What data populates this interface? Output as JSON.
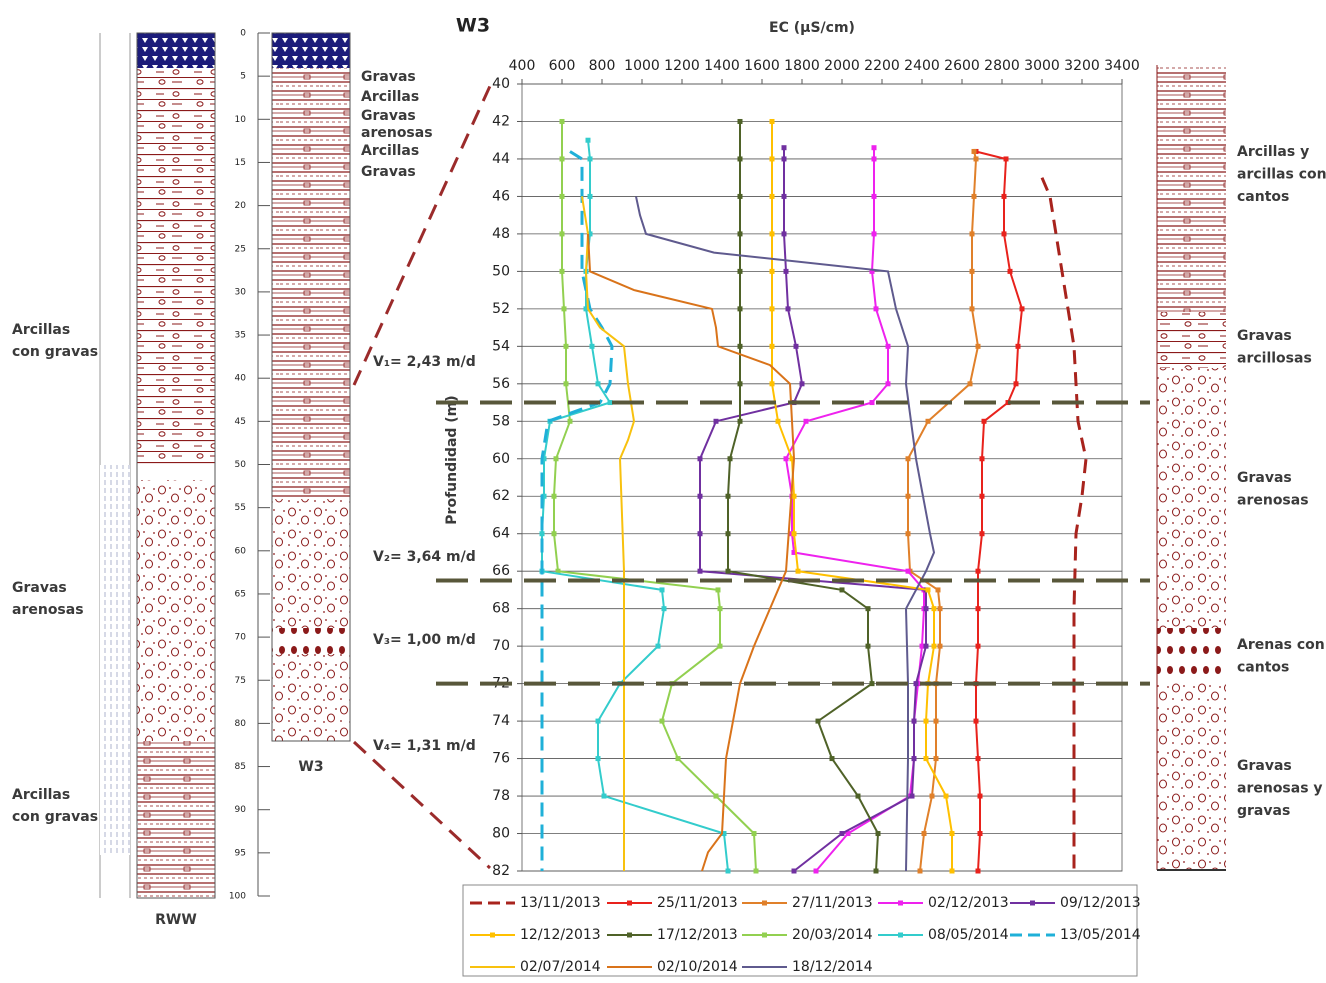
{
  "chart_data": {
    "type": "line",
    "title": "W3",
    "x_label": "EC (µS/cm)",
    "y_label": "Profundidad (m)",
    "xlim": [
      400,
      3400
    ],
    "xticks": [
      400,
      600,
      800,
      1000,
      1200,
      1400,
      1600,
      1800,
      2000,
      2200,
      2400,
      2600,
      2800,
      3000,
      3200,
      3400
    ],
    "ylim": [
      40,
      82
    ],
    "y_inverted": true,
    "yticks": [
      40,
      42,
      44,
      46,
      48,
      50,
      52,
      54,
      56,
      58,
      60,
      62,
      64,
      66,
      68,
      70,
      72,
      74,
      76,
      78,
      80,
      82
    ],
    "grid": true,
    "boundaries": [
      57,
      66.5,
      72
    ],
    "velocity_labels": [
      "V₁= 2,43 m/d",
      "V₂= 3,64 m/d",
      "V₃= 1,00 m/d",
      "V₄= 1,31 m/d"
    ],
    "series": [
      {
        "name": "13/11/2013",
        "color": "#a8231d",
        "dash": true,
        "marker": false,
        "y": [
          45,
          46,
          50,
          54,
          58,
          60,
          62,
          64,
          68,
          72,
          76,
          80,
          82
        ],
        "x": [
          3000,
          3040,
          3100,
          3160,
          3180,
          3220,
          3200,
          3170,
          3160,
          3160,
          3160,
          3160,
          3160
        ]
      },
      {
        "name": "25/11/2013",
        "color": "#e8221c",
        "dash": false,
        "marker": true,
        "y": [
          43.6,
          44,
          46,
          48,
          50,
          52,
          54,
          56,
          57,
          58,
          60,
          62,
          64,
          66,
          68,
          70,
          72,
          74,
          76,
          78,
          80,
          82
        ],
        "x": [
          2670,
          2820,
          2810,
          2810,
          2840,
          2900,
          2880,
          2870,
          2830,
          2710,
          2700,
          2700,
          2700,
          2680,
          2680,
          2680,
          2670,
          2670,
          2680,
          2690,
          2690,
          2680
        ]
      },
      {
        "name": "27/11/2013",
        "color": "#e0802a",
        "dash": false,
        "marker": true,
        "y": [
          43.6,
          44,
          46,
          48,
          50,
          52,
          54,
          56,
          58,
          60,
          62,
          64,
          66,
          67,
          68,
          70,
          72,
          74,
          76,
          78,
          80,
          82
        ],
        "x": [
          2660,
          2670,
          2660,
          2650,
          2650,
          2650,
          2680,
          2640,
          2430,
          2330,
          2330,
          2330,
          2340,
          2480,
          2490,
          2490,
          2470,
          2470,
          2470,
          2450,
          2410,
          2390
        ]
      },
      {
        "name": "02/12/2013",
        "color": "#ee22ee",
        "dash": false,
        "marker": true,
        "y": [
          43.4,
          44,
          46,
          48,
          50,
          52,
          54,
          56,
          57,
          58,
          60,
          62,
          64,
          65,
          66,
          67,
          68,
          70,
          72,
          74,
          76,
          78,
          80,
          82
        ],
        "x": [
          2160,
          2160,
          2160,
          2160,
          2150,
          2170,
          2230,
          2230,
          2150,
          1820,
          1720,
          1750,
          1750,
          1760,
          2330,
          2410,
          2410,
          2400,
          2380,
          2360,
          2360,
          2340,
          2030,
          1870
        ]
      },
      {
        "name": "09/12/2013",
        "color": "#7030a0",
        "dash": false,
        "marker": true,
        "y": [
          43.4,
          44,
          46,
          48,
          50,
          52,
          54,
          56,
          57,
          58,
          60,
          62,
          64,
          66,
          67,
          68,
          70,
          72,
          74,
          76,
          78,
          80,
          82
        ],
        "x": [
          1710,
          1710,
          1710,
          1710,
          1720,
          1730,
          1770,
          1800,
          1760,
          1370,
          1290,
          1290,
          1290,
          1290,
          2420,
          2420,
          2420,
          2370,
          2360,
          2360,
          2350,
          2000,
          1760
        ]
      },
      {
        "name": "12/12/2013",
        "color": "#ffc000",
        "dash": false,
        "marker": true,
        "y": [
          42,
          44,
          46,
          48,
          50,
          52,
          54,
          56,
          58,
          60,
          62,
          64,
          66,
          67,
          68,
          70,
          72,
          74,
          76,
          78,
          80,
          82
        ],
        "x": [
          1650,
          1650,
          1650,
          1650,
          1650,
          1650,
          1650,
          1650,
          1680,
          1750,
          1760,
          1760,
          1780,
          2430,
          2460,
          2460,
          2430,
          2420,
          2420,
          2520,
          2550,
          2550
        ]
      },
      {
        "name": "17/12/2013",
        "color": "#4f6228",
        "dash": false,
        "marker": true,
        "y": [
          42,
          44,
          46,
          48,
          50,
          52,
          54,
          56,
          58,
          60,
          62,
          64,
          66,
          67,
          68,
          70,
          72,
          74,
          76,
          78,
          80,
          82
        ],
        "x": [
          1490,
          1490,
          1490,
          1490,
          1490,
          1490,
          1490,
          1490,
          1490,
          1440,
          1430,
          1430,
          1430,
          2000,
          2130,
          2130,
          2150,
          1880,
          1950,
          2080,
          2180,
          2170
        ]
      },
      {
        "name": "20/03/2014",
        "color": "#92d050",
        "dash": false,
        "marker": true,
        "y": [
          42,
          44,
          46,
          48,
          50,
          52,
          54,
          56,
          58,
          60,
          62,
          64,
          66,
          67,
          68,
          70,
          72,
          74,
          76,
          78,
          80,
          82
        ],
        "x": [
          600,
          600,
          600,
          600,
          600,
          610,
          620,
          620,
          640,
          570,
          560,
          560,
          580,
          1380,
          1390,
          1390,
          1150,
          1100,
          1180,
          1370,
          1560,
          1570
        ]
      },
      {
        "name": "08/05/2014",
        "color": "#33cccc",
        "dash": false,
        "marker": true,
        "y": [
          43,
          44,
          46,
          48,
          50,
          52,
          54,
          56,
          57,
          58,
          60,
          62,
          64,
          66,
          67,
          68,
          70,
          72,
          74,
          76,
          78,
          80,
          82
        ],
        "x": [
          730,
          740,
          740,
          740,
          720,
          720,
          750,
          780,
          840,
          540,
          510,
          510,
          500,
          500,
          1100,
          1110,
          1080,
          890,
          780,
          780,
          810,
          1410,
          1430
        ]
      },
      {
        "name": "13/05/2014",
        "color": "#1fb0d8",
        "dash": true,
        "marker": false,
        "y": [
          43.6,
          44,
          46,
          48,
          50,
          52,
          53,
          54,
          56,
          57,
          58,
          60,
          64,
          68,
          72,
          76,
          80,
          82
        ],
        "x": [
          640,
          700,
          700,
          700,
          700,
          740,
          800,
          850,
          840,
          790,
          530,
          500,
          500,
          500,
          500,
          500,
          500,
          500
        ]
      },
      {
        "name": "02/07/2014",
        "color": "#f8c10e",
        "dash": false,
        "marker": false,
        "y": [
          46,
          48,
          50,
          52,
          53,
          54,
          56,
          58,
          59,
          60,
          66,
          82
        ],
        "x": [
          700,
          730,
          720,
          730,
          790,
          910,
          930,
          960,
          930,
          890,
          910,
          910
        ]
      },
      {
        "name": "02/10/2014",
        "color": "#d9731a",
        "dash": false,
        "marker": false,
        "y": [
          48,
          50,
          51,
          52,
          53,
          54,
          55,
          56,
          60,
          66,
          70,
          72,
          76,
          80,
          81,
          82
        ],
        "x": [
          730,
          740,
          960,
          1350,
          1370,
          1380,
          1640,
          1740,
          1760,
          1720,
          1560,
          1490,
          1420,
          1400,
          1330,
          1300
        ]
      },
      {
        "name": "18/12/2014",
        "color": "#5f5a8e",
        "dash": false,
        "marker": false,
        "y": [
          46,
          47,
          48,
          49,
          50,
          52,
          54,
          56,
          60,
          64,
          65,
          66,
          68,
          72,
          76,
          82
        ],
        "x": [
          970,
          990,
          1020,
          1360,
          2230,
          2270,
          2330,
          2320,
          2370,
          2440,
          2460,
          2420,
          2320,
          2330,
          2330,
          2320
        ]
      }
    ]
  },
  "logs": {
    "ticks": [
      0,
      5,
      10,
      15,
      20,
      25,
      30,
      35,
      40,
      45,
      50,
      55,
      60,
      65,
      70,
      75,
      80,
      85,
      90,
      95,
      100
    ],
    "columns": [
      "RWW",
      "W3"
    ],
    "left_labels": [
      [
        "Arcillas",
        "con gravas"
      ],
      [
        "Gravas",
        "arenosas"
      ],
      [
        "Arcillas",
        "con gravas"
      ]
    ],
    "w3_labels": [
      [
        "Gravas"
      ],
      [
        "Arcillas"
      ],
      [
        "Gravas",
        "arenosas"
      ],
      [
        "Arcillas"
      ],
      [
        "Gravas"
      ]
    ],
    "right_labels": [
      [
        "Arcillas y",
        "arcillas con",
        "cantos"
      ],
      [
        "Gravas",
        "arcillosas"
      ],
      [
        "Gravas",
        "arenosas"
      ],
      [
        "Arenas con",
        "cantos"
      ],
      [
        "Gravas",
        "arenosas y",
        "gravas"
      ]
    ]
  }
}
